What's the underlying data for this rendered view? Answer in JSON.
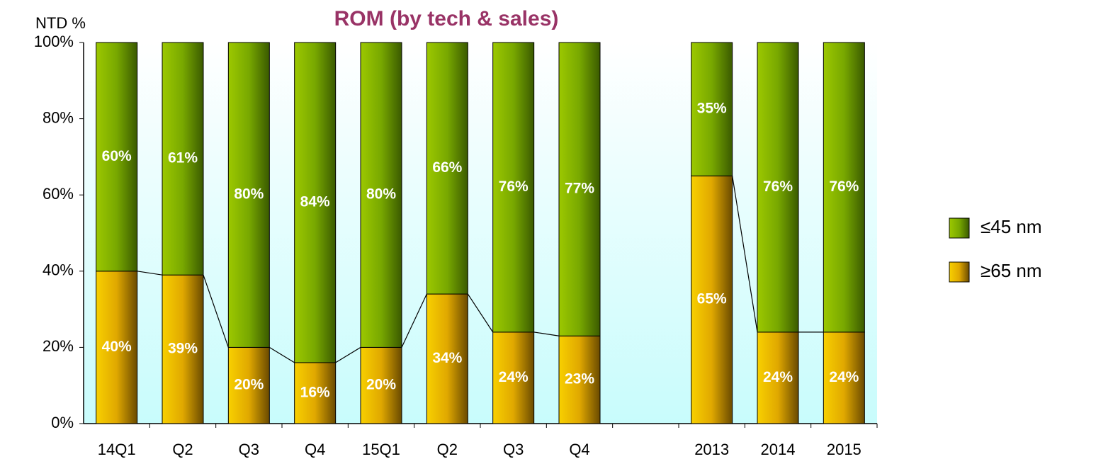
{
  "chart_data": {
    "type": "stacked_bar",
    "title": "ROM (by tech & sales)",
    "y_label": "NTD %",
    "categories": [
      "14Q1",
      "Q2",
      "Q3",
      "Q4",
      "15Q1",
      "Q2",
      "Q3",
      "Q4",
      null,
      "2013",
      "2014",
      "2015"
    ],
    "series": [
      {
        "name": "≥65 nm",
        "color": "#e8b000",
        "values": [
          40,
          39,
          20,
          16,
          20,
          34,
          24,
          23,
          null,
          65,
          24,
          24
        ],
        "value_labels": [
          "40%",
          "39%",
          "20%",
          "16%",
          "20%",
          "34%",
          "24%",
          "23%",
          null,
          "65%",
          "24%",
          "24%"
        ]
      },
      {
        "name": "≤45 nm",
        "color": "#7fb000",
        "values": [
          60,
          61,
          80,
          84,
          80,
          66,
          76,
          77,
          null,
          35,
          76,
          76
        ],
        "value_labels": [
          "60%",
          "61%",
          "80%",
          "84%",
          "80%",
          "66%",
          "76%",
          "77%",
          null,
          "35%",
          "76%",
          "76%"
        ]
      }
    ],
    "ylim": [
      0,
      100
    ],
    "yticks": [
      {
        "value": 0,
        "label": "0%"
      },
      {
        "value": 20,
        "label": "20%"
      },
      {
        "value": 40,
        "label": "40%"
      },
      {
        "value": 60,
        "label": "60%"
      },
      {
        "value": 80,
        "label": "80%"
      },
      {
        "value": 100,
        "label": "100%"
      }
    ],
    "legend": "right"
  }
}
